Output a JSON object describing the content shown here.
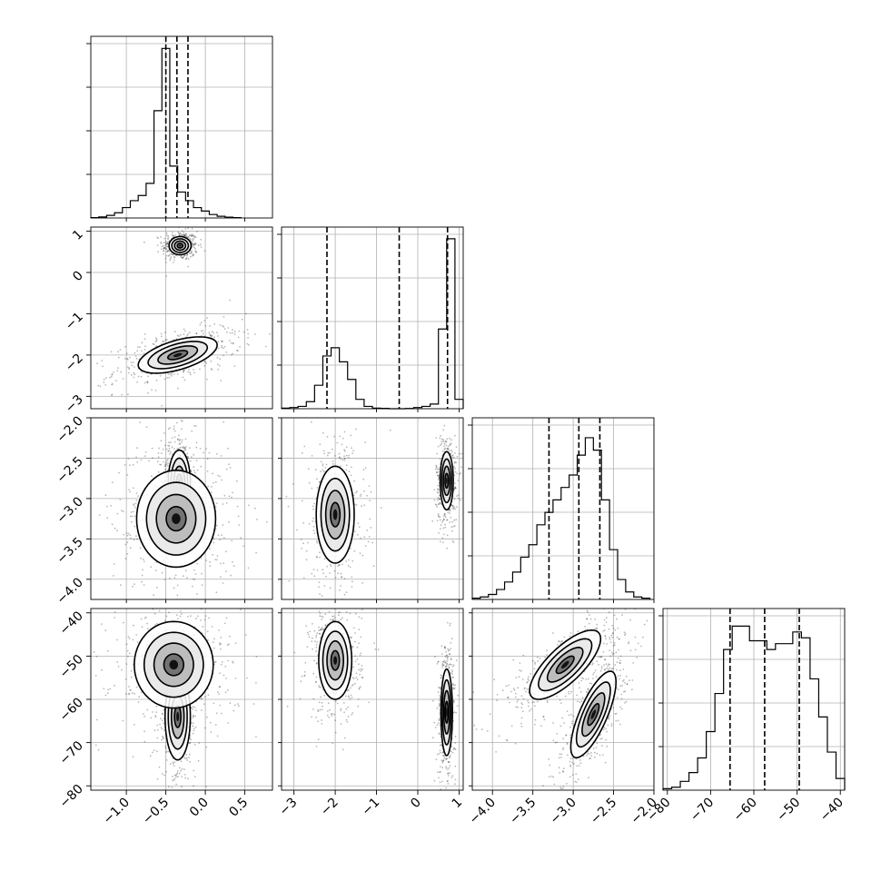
{
  "chart_data": {
    "type": "corner",
    "parameters": [
      {
        "range": [
          -1.45,
          0.85
        ],
        "ticks": [
          -1.0,
          -0.5,
          0.0,
          0.5
        ],
        "tick_labels": [
          "−1.0",
          "−0.5",
          "0.0",
          "0.5"
        ]
      },
      {
        "range": [
          -3.3,
          1.1
        ],
        "ticks": [
          -3,
          -2,
          -1,
          0,
          1
        ],
        "tick_labels": [
          "−3",
          "−2",
          "−1",
          "0",
          "1"
        ]
      },
      {
        "range": [
          -4.25,
          -2.0
        ],
        "ticks": [
          -4.0,
          -3.5,
          -3.0,
          -2.5,
          -2.0
        ],
        "tick_labels": [
          "−4.0",
          "−3.5",
          "−3.0",
          "−2.5",
          "−2.0"
        ]
      },
      {
        "range": [
          -81,
          -39
        ],
        "ticks": [
          -80,
          -70,
          -60,
          -50,
          -40
        ],
        "tick_labels": [
          "−80",
          "−70",
          "−60",
          "−50",
          "−40"
        ]
      }
    ],
    "histograms": [
      {
        "edges": [
          -1.45,
          -1.35,
          -1.25,
          -1.15,
          -1.05,
          -0.95,
          -0.85,
          -0.75,
          -0.65,
          -0.55,
          -0.45,
          -0.35,
          -0.25,
          -0.15,
          -0.05,
          0.05,
          0.15,
          0.25,
          0.35,
          0.45
        ],
        "counts": [
          0.2,
          0.6,
          1.5,
          3,
          6,
          10,
          13,
          20,
          62,
          98,
          30,
          15,
          10,
          6,
          4,
          2,
          1,
          0.5,
          0.2
        ],
        "ymax": 105,
        "quantiles": [
          -0.5,
          -0.36,
          -0.22
        ]
      },
      {
        "edges": [
          -3.3,
          -3.1,
          -2.9,
          -2.7,
          -2.5,
          -2.3,
          -2.1,
          -1.9,
          -1.7,
          -1.5,
          -1.3,
          -1.1,
          -0.9,
          -0.7,
          -0.5,
          -0.3,
          -0.1,
          0.1,
          0.3,
          0.5,
          0.7,
          0.9,
          1.1
        ],
        "counts": [
          0.5,
          1,
          2,
          6,
          20,
          45,
          52,
          40,
          25,
          8,
          2,
          0.5,
          0.3,
          0,
          0,
          0.2,
          1,
          2,
          4,
          68,
          145,
          8
        ],
        "ymax": 155,
        "quantiles": [
          -2.2,
          -0.45,
          0.72
        ]
      },
      {
        "edges": [
          -4.25,
          -4.15,
          -4.05,
          -3.95,
          -3.85,
          -3.75,
          -3.65,
          -3.55,
          -3.45,
          -3.35,
          -3.25,
          -3.15,
          -3.05,
          -2.95,
          -2.85,
          -2.75,
          -2.65,
          -2.55,
          -2.45,
          -2.35,
          -2.25,
          -2.15,
          -2.05
        ],
        "counts": [
          0.5,
          1,
          2,
          4,
          7,
          11,
          17,
          22,
          30,
          35,
          40,
          45,
          50,
          58,
          65,
          60,
          40,
          20,
          8,
          3,
          1,
          0.5
        ],
        "ymax": 73,
        "quantiles": [
          -3.3,
          -2.93,
          -2.67
        ]
      },
      {
        "edges": [
          -81,
          -79,
          -77,
          -75,
          -73,
          -71,
          -69,
          -67,
          -65,
          -63,
          -61,
          -59,
          -57,
          -55,
          -53,
          -51,
          -49,
          -47,
          -45,
          -43,
          -41,
          -39
        ],
        "counts": [
          0.5,
          1,
          3,
          6,
          11,
          20,
          33,
          48,
          56,
          56,
          51,
          51,
          48,
          50,
          50,
          54,
          52,
          38,
          25,
          13,
          4
        ],
        "ymax": 62,
        "quantiles": [
          -65.5,
          -57.5,
          -49.5
        ]
      }
    ],
    "joint_modes": [
      {
        "pair": [
          0,
          1
        ],
        "modes": [
          {
            "mean": [
              -0.32,
              0.65
            ],
            "sd": [
              0.07,
              0.11
            ],
            "corr": 0.0,
            "frac": 0.45
          },
          {
            "mean": [
              -0.35,
              -2.0
            ],
            "sd": [
              0.25,
              0.22
            ],
            "corr": 0.55,
            "frac": 0.55
          }
        ]
      },
      {
        "pair": [
          0,
          2
        ],
        "modes": [
          {
            "mean": [
              -0.33,
              -2.8
            ],
            "sd": [
              0.07,
              0.2
            ],
            "corr": 0.0,
            "frac": 0.5
          },
          {
            "mean": [
              -0.37,
              -3.25
            ],
            "sd": [
              0.25,
              0.3
            ],
            "corr": 0.0,
            "frac": 0.5
          }
        ]
      },
      {
        "pair": [
          1,
          2
        ],
        "modes": [
          {
            "mean": [
              0.7,
              -2.78
            ],
            "sd": [
              0.08,
              0.18
            ],
            "corr": 0.0,
            "frac": 0.5
          },
          {
            "mean": [
              -2.0,
              -3.2
            ],
            "sd": [
              0.23,
              0.3
            ],
            "corr": 0.0,
            "frac": 0.5
          }
        ]
      },
      {
        "pair": [
          0,
          3
        ],
        "modes": [
          {
            "mean": [
              -0.35,
              -64
            ],
            "sd": [
              0.08,
              5
            ],
            "corr": 0.0,
            "frac": 0.5
          },
          {
            "mean": [
              -0.4,
              -52
            ],
            "sd": [
              0.25,
              5
            ],
            "corr": 0.0,
            "frac": 0.5
          }
        ]
      },
      {
        "pair": [
          1,
          3
        ],
        "modes": [
          {
            "mean": [
              -2.0,
              -51
            ],
            "sd": [
              0.2,
              4.5
            ],
            "corr": 0.0,
            "frac": 0.5
          },
          {
            "mean": [
              0.7,
              -63
            ],
            "sd": [
              0.07,
              5
            ],
            "corr": 0.0,
            "frac": 0.5
          }
        ]
      },
      {
        "pair": [
          2,
          3
        ],
        "modes": [
          {
            "mean": [
              -3.1,
              -52
            ],
            "sd": [
              0.22,
              4
            ],
            "corr": 0.75,
            "frac": 0.5
          },
          {
            "mean": [
              -2.75,
              -63.5
            ],
            "sd": [
              0.14,
              5
            ],
            "corr": 0.75,
            "frac": 0.5
          }
        ]
      }
    ],
    "contour_levels_in_sigma": [
      0.5,
      1.0,
      1.5,
      2.0
    ],
    "grid": true
  }
}
